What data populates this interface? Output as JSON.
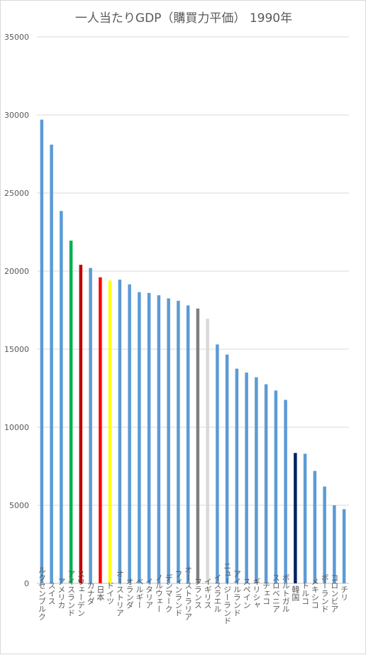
{
  "chart_data": {
    "type": "bar",
    "title": "一人当たりGDP（購買力平価） 1990年",
    "xlabel": "",
    "ylabel": "",
    "ylim": [
      0,
      35000
    ],
    "yticks": [
      0,
      5000,
      10000,
      15000,
      20000,
      25000,
      30000,
      35000
    ],
    "grid": true,
    "legend": "none",
    "categories": [
      "ルクセンブルク",
      "スイス",
      "アメリカ",
      "アイスランド",
      "スウェーデン",
      "カナダ",
      "日本",
      "ドイツ",
      "オーストリア",
      "オランダ",
      "ベルギー",
      "イタリア",
      "ノルウェー",
      "デンマーク",
      "フィンランド",
      "オーストラリア",
      "フランス",
      "イギリス",
      "イスラエル",
      "ニュージーランド",
      "アイルランド",
      "スペイン",
      "ギリシャ",
      "チェコ",
      "スロベニア",
      "ポルトガル",
      "韓国",
      "トルコ",
      "メキシコ",
      "ポーランド",
      "コロンビア",
      "チリ"
    ],
    "values": [
      29700,
      28100,
      23850,
      21950,
      20400,
      20200,
      19600,
      19400,
      19450,
      19150,
      18650,
      18600,
      18450,
      18250,
      18100,
      17800,
      17600,
      16950,
      15300,
      14650,
      13750,
      13500,
      13200,
      12750,
      12350,
      11750,
      8350,
      8300,
      7200,
      6200,
      5000,
      4750
    ],
    "default_color": "#5b9bd5",
    "highlight_colors": {
      "アイスランド": "#00b050",
      "スウェーデン": "#c00000",
      "日本": "#ff0000",
      "ドイツ": "#ffff00",
      "フランス": "#7f7f7f",
      "イギリス": "#d9d9d9",
      "韓国": "#002060"
    },
    "gridline_color": "#d9d9d9",
    "axis_color": "#bfbfbf",
    "text_color": "#595959"
  }
}
